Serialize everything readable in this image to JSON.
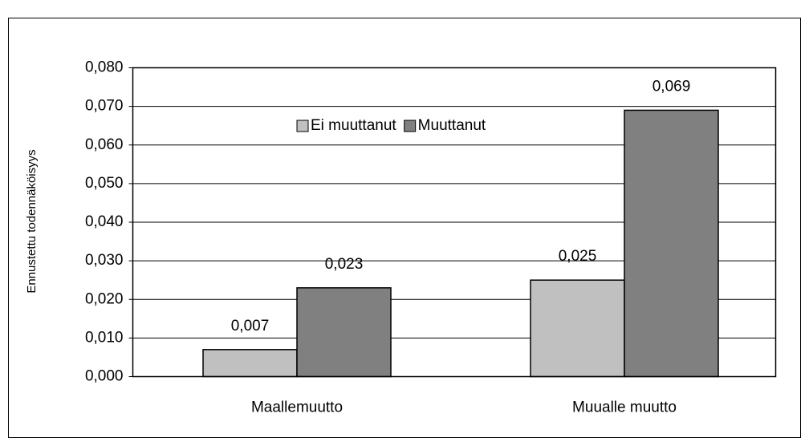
{
  "chart_data": {
    "type": "bar",
    "y_label": "Ennustettu todennäköisyys",
    "categories": [
      "Maallemuutto",
      "Muualle muutto"
    ],
    "series": [
      {
        "name": "Ei muuttanut",
        "color": "#c0c0c0",
        "values": [
          0.007,
          0.025
        ],
        "value_labels": [
          "0,007",
          "0,025"
        ]
      },
      {
        "name": "Muuttanut",
        "color": "#808080",
        "values": [
          0.023,
          0.069
        ],
        "value_labels": [
          "0,023",
          "0,069"
        ]
      }
    ],
    "ylim": [
      0,
      0.08
    ],
    "yticks": [
      {
        "value": 0,
        "label": "0,000"
      },
      {
        "value": 0.01,
        "label": "0,010"
      },
      {
        "value": 0.02,
        "label": "0,020"
      },
      {
        "value": 0.03,
        "label": "0,030"
      },
      {
        "value": 0.04,
        "label": "0,040"
      },
      {
        "value": 0.05,
        "label": "0,050"
      },
      {
        "value": 0.06,
        "label": "0,060"
      },
      {
        "value": 0.07,
        "label": "0,070"
      },
      {
        "value": 0.08,
        "label": "0,080"
      }
    ],
    "grid": true,
    "legend": "top"
  }
}
